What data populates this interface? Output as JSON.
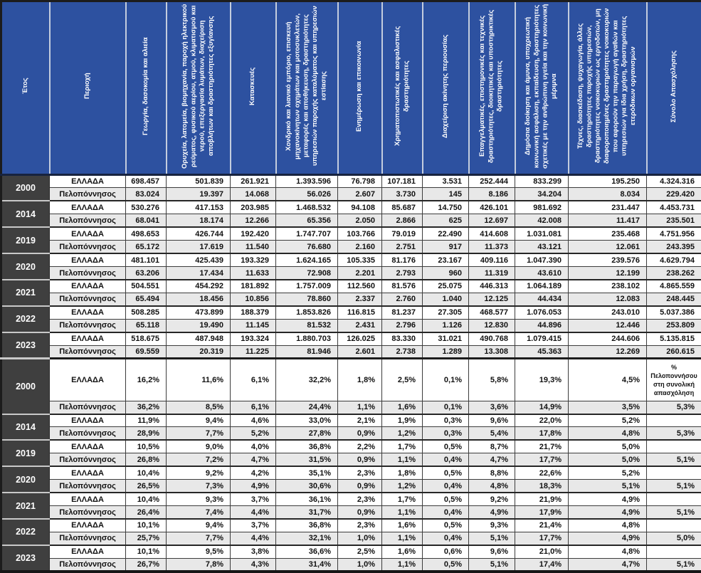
{
  "header": {
    "columns": [
      "Έτος",
      "Περιοχή",
      "Γεωργία, δασοκομία και αλιεία",
      "Ορυχεία, λατομεία, βιομηχανία, παροχή ηλεκτρικού ρεύματος, φυσικού αερίου, ατμού, κλιματισμού και νερού, επεξεργασία λυμάτων, διαχείριση αποβλήτων και δραστηριότητες εξυγίανσης",
      "Κατασκευές",
      "Χονδρικό και λιανικό εμπόριο, επισκευή μηχανοκίνητων οχημάτων και μοτοσυκλετών, μεταφορές και αποθήκευση, δραστηριότητες υπηρεσιών παροχής καταλύματος και υπηρεσιών εστίασης",
      "Ενημέρωση και επικοινωνία",
      "Χρηματοπιστωτικές και ασφαλιστικές δραστηριότητες",
      "Διαχείριση ακίνητης περιουσίας",
      "Επαγγελματικές, επιστημονικές και τεχνικές δραστηριότητες, διοικητικές και υποστηρικτικές δραστηριότητες",
      "Δημόσια διοίκηση και άμυνα, υποχρεωτική κοινωνική ασφάλιση, εκπαίδευση, δραστηριότητες σχετικές με την ανθρώπινη υγεία και την κοινωνική μέριμνα",
      "Τέχνες, διασκέδαση, ψυχαγωγία, άλλες δραστηριότητες παροχής υπηρεσιών, δραστηριότητες νοικοκυριών ως εργοδοτών, μη διαφοροποιημένες δραστηριότητες νοικοκυριών που αφορούν την παραγωγή αγαθών και υπηρεσιών για ίδια χρήση, δραστηριότητες ετερόδικων οργανισμών",
      "Σύνολο Απασχόλησης"
    ]
  },
  "regions": [
    "ΕΛΛΑΔΑ",
    "Πελοπόννησος"
  ],
  "share_header": "% Πελοποννήσου στη συνολική απασχόληση",
  "colors": {
    "header_blue": "#2d51a0",
    "year_dark": "#3f3f3f",
    "alt_row_gray": "#e8e8e8"
  },
  "absolute": [
    {
      "year": "2000",
      "greece": [
        "698.457",
        "501.839",
        "261.921",
        "1.393.596",
        "76.798",
        "107.181",
        "3.531",
        "252.444",
        "833.299",
        "195.250",
        "4.324.316"
      ],
      "pelop": [
        "83.024",
        "19.397",
        "14.068",
        "56.026",
        "2.607",
        "3.730",
        "145",
        "8.186",
        "34.204",
        "8.034",
        "229.420"
      ]
    },
    {
      "year": "2014",
      "greece": [
        "530.276",
        "417.153",
        "203.985",
        "1.468.532",
        "94.108",
        "85.687",
        "14.750",
        "426.101",
        "981.692",
        "231.447",
        "4.453.731"
      ],
      "pelop": [
        "68.041",
        "18.174",
        "12.266",
        "65.356",
        "2.050",
        "2.866",
        "625",
        "12.697",
        "42.008",
        "11.417",
        "235.501"
      ]
    },
    {
      "year": "2019",
      "greece": [
        "498.653",
        "426.744",
        "192.420",
        "1.747.707",
        "103.766",
        "79.019",
        "22.490",
        "414.608",
        "1.031.081",
        "235.468",
        "4.751.956"
      ],
      "pelop": [
        "65.172",
        "17.619",
        "11.540",
        "76.680",
        "2.160",
        "2.751",
        "917",
        "11.373",
        "43.121",
        "12.061",
        "243.395"
      ]
    },
    {
      "year": "2020",
      "greece": [
        "481.101",
        "425.439",
        "193.329",
        "1.624.165",
        "105.335",
        "81.176",
        "23.167",
        "409.116",
        "1.047.390",
        "239.576",
        "4.629.794"
      ],
      "pelop": [
        "63.206",
        "17.434",
        "11.633",
        "72.908",
        "2.201",
        "2.793",
        "960",
        "11.319",
        "43.610",
        "12.199",
        "238.262"
      ]
    },
    {
      "year": "2021",
      "greece": [
        "504.551",
        "454.292",
        "181.892",
        "1.757.009",
        "112.560",
        "81.576",
        "25.075",
        "446.313",
        "1.064.189",
        "238.102",
        "4.865.559"
      ],
      "pelop": [
        "65.494",
        "18.456",
        "10.856",
        "78.860",
        "2.337",
        "2.760",
        "1.040",
        "12.125",
        "44.434",
        "12.083",
        "248.445"
      ]
    },
    {
      "year": "2022",
      "greece": [
        "508.285",
        "473.899",
        "188.379",
        "1.853.826",
        "116.815",
        "81.237",
        "27.305",
        "468.577",
        "1.076.053",
        "243.010",
        "5.037.386"
      ],
      "pelop": [
        "65.118",
        "19.490",
        "11.145",
        "81.532",
        "2.431",
        "2.796",
        "1.126",
        "12.830",
        "44.896",
        "12.446",
        "253.809"
      ]
    },
    {
      "year": "2023",
      "greece": [
        "518.675",
        "487.948",
        "193.324",
        "1.880.703",
        "126.025",
        "83.330",
        "31.021",
        "490.768",
        "1.079.415",
        "244.606",
        "5.135.815"
      ],
      "pelop": [
        "69.559",
        "20.319",
        "11.225",
        "81.946",
        "2.601",
        "2.738",
        "1.289",
        "13.308",
        "45.363",
        "12.269",
        "260.615"
      ]
    }
  ],
  "percent": [
    {
      "year": "2000",
      "greece": [
        "16,2%",
        "11,6%",
        "6,1%",
        "32,2%",
        "1,8%",
        "2,5%",
        "0,1%",
        "5,8%",
        "19,3%",
        "4,5%"
      ],
      "pelop": [
        "36,2%",
        "8,5%",
        "6,1%",
        "24,4%",
        "1,1%",
        "1,6%",
        "0,1%",
        "3,6%",
        "14,9%",
        "3,5%"
      ],
      "share": "5,3%"
    },
    {
      "year": "2014",
      "greece": [
        "11,9%",
        "9,4%",
        "4,6%",
        "33,0%",
        "2,1%",
        "1,9%",
        "0,3%",
        "9,6%",
        "22,0%",
        "5,2%"
      ],
      "pelop": [
        "28,9%",
        "7,7%",
        "5,2%",
        "27,8%",
        "0,9%",
        "1,2%",
        "0,3%",
        "5,4%",
        "17,8%",
        "4,8%"
      ],
      "share": "5,3%"
    },
    {
      "year": "2019",
      "greece": [
        "10,5%",
        "9,0%",
        "4,0%",
        "36,8%",
        "2,2%",
        "1,7%",
        "0,5%",
        "8,7%",
        "21,7%",
        "5,0%"
      ],
      "pelop": [
        "26,8%",
        "7,2%",
        "4,7%",
        "31,5%",
        "0,9%",
        "1,1%",
        "0,4%",
        "4,7%",
        "17,7%",
        "5,0%"
      ],
      "share": "5,1%"
    },
    {
      "year": "2020",
      "greece": [
        "10,4%",
        "9,2%",
        "4,2%",
        "35,1%",
        "2,3%",
        "1,8%",
        "0,5%",
        "8,8%",
        "22,6%",
        "5,2%"
      ],
      "pelop": [
        "26,5%",
        "7,3%",
        "4,9%",
        "30,6%",
        "0,9%",
        "1,2%",
        "0,4%",
        "4,8%",
        "18,3%",
        "5,1%"
      ],
      "share": "5,1%"
    },
    {
      "year": "2021",
      "greece": [
        "10,4%",
        "9,3%",
        "3,7%",
        "36,1%",
        "2,3%",
        "1,7%",
        "0,5%",
        "9,2%",
        "21,9%",
        "4,9%"
      ],
      "pelop": [
        "26,4%",
        "7,4%",
        "4,4%",
        "31,7%",
        "0,9%",
        "1,1%",
        "0,4%",
        "4,9%",
        "17,9%",
        "4,9%"
      ],
      "share": "5,1%"
    },
    {
      "year": "2022",
      "greece": [
        "10,1%",
        "9,4%",
        "3,7%",
        "36,8%",
        "2,3%",
        "1,6%",
        "0,5%",
        "9,3%",
        "21,4%",
        "4,8%"
      ],
      "pelop": [
        "25,7%",
        "7,7%",
        "4,4%",
        "32,1%",
        "1,0%",
        "1,1%",
        "0,4%",
        "5,1%",
        "17,7%",
        "4,9%"
      ],
      "share": "5,0%"
    },
    {
      "year": "2023",
      "greece": [
        "10,1%",
        "9,5%",
        "3,8%",
        "36,6%",
        "2,5%",
        "1,6%",
        "0,6%",
        "9,6%",
        "21,0%",
        "4,8%"
      ],
      "pelop": [
        "26,7%",
        "7,8%",
        "4,3%",
        "31,4%",
        "1,0%",
        "1,1%",
        "0,5%",
        "5,1%",
        "17,4%",
        "4,7%"
      ],
      "share": "5,1%"
    }
  ]
}
